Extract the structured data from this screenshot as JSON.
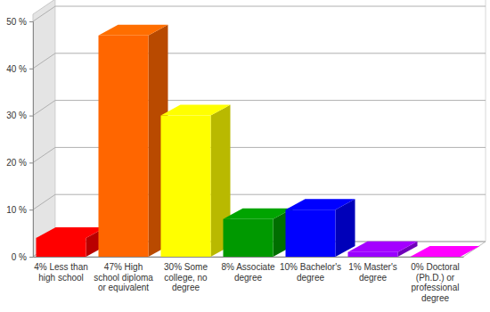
{
  "chart_data": {
    "type": "bar",
    "categories": [
      "4% Less than high school",
      "47% High school diploma or equivalent",
      "30% Some college, no degree",
      "8% Associate degree",
      "10% Bachelor's degree",
      "1% Master's degree",
      "0% Doctoral (Ph.D.) or professional degree"
    ],
    "values": [
      4,
      47,
      30,
      8,
      10,
      1,
      0
    ],
    "colors": [
      "#ff0000",
      "#ff6600",
      "#ffff00",
      "#009900",
      "#0000ff",
      "#9900ff",
      "#ff00ff"
    ],
    "ylim": [
      0,
      50
    ],
    "yticks": [
      {
        "value": 0,
        "label": "0 %"
      },
      {
        "value": 10,
        "label": "10 %"
      },
      {
        "value": 20,
        "label": "20 %"
      },
      {
        "value": 30,
        "label": "30 %"
      },
      {
        "value": 40,
        "label": "40 %"
      },
      {
        "value": 50,
        "label": "50 %"
      }
    ],
    "grid": true
  }
}
